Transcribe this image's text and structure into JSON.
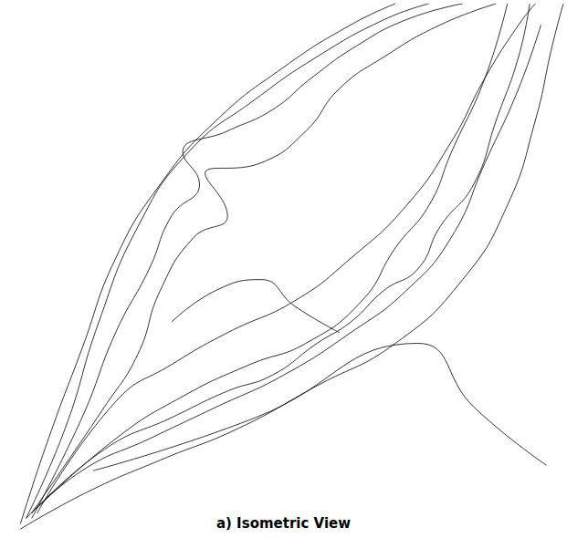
{
  "chart_data": {
    "type": "line",
    "title": "a) Isometric View",
    "color": "#000000",
    "xlim": [
      0,
      100
    ],
    "ylim": [
      0,
      100
    ],
    "grid": false,
    "tick_labels": false,
    "series": [
      {
        "values": [
          [
            3,
            2
          ],
          [
            8,
            18
          ],
          [
            14,
            35
          ],
          [
            20,
            52
          ],
          [
            28,
            66
          ],
          [
            38,
            78
          ],
          [
            50,
            88
          ],
          [
            62,
            96
          ],
          [
            70,
            100
          ]
        ]
      },
      {
        "values": [
          [
            4,
            3
          ],
          [
            11,
            20
          ],
          [
            17,
            40
          ],
          [
            24,
            58
          ],
          [
            33,
            72
          ],
          [
            45,
            82
          ],
          [
            56,
            90
          ],
          [
            68,
            97
          ],
          [
            76,
            100
          ]
        ]
      },
      {
        "values": [
          [
            5,
            3
          ],
          [
            14,
            22
          ],
          [
            20,
            38
          ],
          [
            26,
            50
          ],
          [
            30,
            60
          ],
          [
            35,
            66
          ],
          [
            32,
            72
          ],
          [
            40,
            76
          ],
          [
            48,
            80
          ],
          [
            55,
            86
          ],
          [
            63,
            92
          ],
          [
            72,
            97
          ],
          [
            82,
            100
          ]
        ]
      },
      {
        "values": [
          [
            5,
            4
          ],
          [
            18,
            24
          ],
          [
            24,
            34
          ],
          [
            28,
            46
          ],
          [
            34,
            56
          ],
          [
            40,
            60
          ],
          [
            36,
            68
          ],
          [
            46,
            70
          ],
          [
            54,
            76
          ],
          [
            60,
            84
          ],
          [
            68,
            90
          ],
          [
            78,
            96
          ],
          [
            88,
            100
          ]
        ]
      },
      {
        "values": [
          [
            6,
            4
          ],
          [
            20,
            25
          ],
          [
            30,
            32
          ],
          [
            40,
            38
          ],
          [
            52,
            44
          ],
          [
            62,
            52
          ],
          [
            72,
            62
          ],
          [
            80,
            74
          ],
          [
            86,
            86
          ],
          [
            92,
            96
          ],
          [
            95,
            100
          ]
        ]
      },
      {
        "values": [
          [
            3,
            1
          ],
          [
            15,
            8
          ],
          [
            28,
            14
          ],
          [
            42,
            20
          ],
          [
            56,
            28
          ],
          [
            70,
            36
          ],
          [
            82,
            48
          ],
          [
            90,
            62
          ],
          [
            95,
            78
          ],
          [
            98,
            92
          ],
          [
            100,
            100
          ]
        ]
      },
      {
        "values": [
          [
            4,
            3
          ],
          [
            14,
            12
          ],
          [
            26,
            18
          ],
          [
            38,
            24
          ],
          [
            50,
            30
          ],
          [
            62,
            38
          ],
          [
            72,
            46
          ],
          [
            80,
            56
          ],
          [
            86,
            70
          ],
          [
            92,
            84
          ],
          [
            96,
            96
          ]
        ]
      },
      {
        "values": [
          [
            5,
            4
          ],
          [
            18,
            16
          ],
          [
            30,
            22
          ],
          [
            40,
            27
          ],
          [
            48,
            30
          ],
          [
            56,
            36
          ],
          [
            62,
            40
          ],
          [
            68,
            46
          ],
          [
            74,
            50
          ],
          [
            78,
            58
          ],
          [
            84,
            66
          ],
          [
            88,
            78
          ],
          [
            92,
            90
          ],
          [
            94,
            100
          ]
        ]
      },
      {
        "values": [
          [
            6,
            5
          ],
          [
            20,
            18
          ],
          [
            32,
            26
          ],
          [
            44,
            32
          ],
          [
            54,
            36
          ],
          [
            64,
            44
          ],
          [
            70,
            54
          ],
          [
            76,
            62
          ],
          [
            80,
            72
          ],
          [
            86,
            86
          ],
          [
            90,
            100
          ]
        ]
      },
      {
        "values": [
          [
            30,
            40
          ],
          [
            38,
            46
          ],
          [
            46,
            48
          ],
          [
            52,
            43
          ],
          [
            60,
            38
          ]
        ]
      },
      {
        "values": [
          [
            16,
            12
          ],
          [
            45,
            22
          ],
          [
            74,
            36
          ],
          [
            84,
            24
          ],
          [
            97,
            13
          ]
        ]
      }
    ]
  }
}
